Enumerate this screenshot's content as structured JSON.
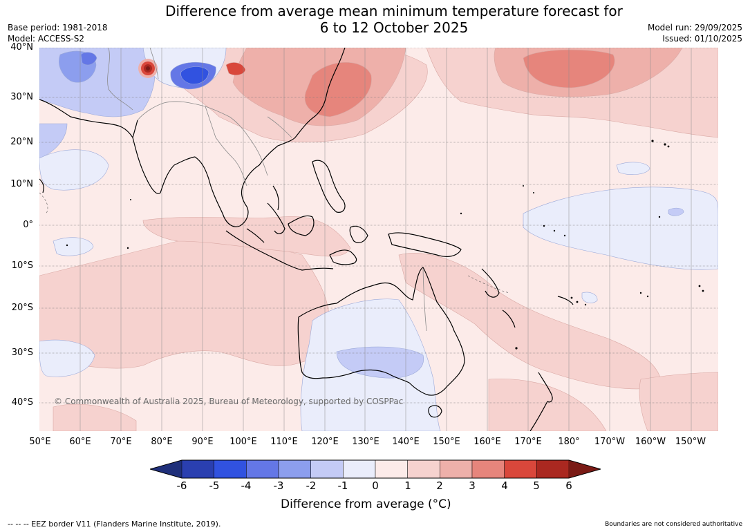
{
  "title_line1": "Difference from average mean minimum temperature forecast for",
  "title_line2": "6 to 12 October 2025",
  "base_period": "Base period: 1981-2018",
  "model": "Model: ACCESS-S2",
  "model_run": "Model run: 29/09/2025",
  "issued": "Issued: 01/10/2025",
  "lat_labels": [
    "40°N",
    "30°N",
    "20°N",
    "10°N",
    "0°",
    "10°S",
    "20°S",
    "30°S",
    "40°S"
  ],
  "lon_labels": [
    "50°E",
    "60°E",
    "70°E",
    "80°E",
    "90°E",
    "100°E",
    "110°E",
    "120°E",
    "130°E",
    "140°E",
    "150°E",
    "160°E",
    "170°E",
    "180°",
    "170°W",
    "160°W",
    "150°W"
  ],
  "copyright": "© Commonwealth of Australia 2025, Bureau of Meteorology, supported by COSPPac",
  "colorbar": {
    "ticks": [
      "-6",
      "-5",
      "-4",
      "-3",
      "-2",
      "-1",
      "0",
      "1",
      "2",
      "3",
      "4",
      "5",
      "6"
    ],
    "colors": [
      "#1f2f7a",
      "#2a3fb0",
      "#3152e0",
      "#6477e6",
      "#8c9eee",
      "#c4cbf6",
      "#eaedfb",
      "#fcebe9",
      "#f6d2cf",
      "#eeb0aa",
      "#e6857c",
      "#d9473b",
      "#aa2820",
      "#7a1a15"
    ],
    "label": "Difference from average (°C)"
  },
  "eez_note": "--  --  -- EEZ border V11 (Flanders Marine Institute, 2019).",
  "boundary_note": "Boundaries are not considered authoritative"
}
